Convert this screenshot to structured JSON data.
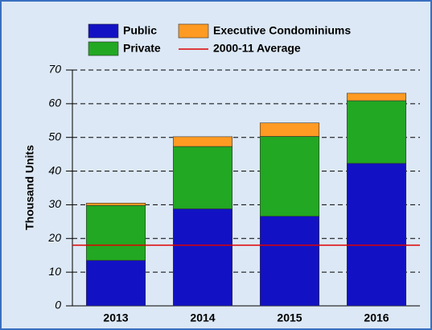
{
  "chart_data": {
    "type": "bar",
    "stacked": true,
    "categories": [
      "2013",
      "2014",
      "2015",
      "2016"
    ],
    "series": [
      {
        "name": "Public",
        "color": "#1212c4",
        "values": [
          13.5,
          28.8,
          26.6,
          42.3
        ]
      },
      {
        "name": "Private",
        "color": "#22a822",
        "values": [
          16.3,
          18.5,
          23.7,
          18.6
        ]
      },
      {
        "name": "Executive Condominiums",
        "color": "#ff9a22",
        "values": [
          0.7,
          2.9,
          4.0,
          2.2
        ]
      }
    ],
    "reference_lines": [
      {
        "name": "2000-11 Average",
        "value": 18,
        "color": "#e00000"
      }
    ],
    "y_label": "Thousand Units",
    "ylim": [
      0,
      70
    ],
    "yticks": [
      0,
      10,
      20,
      30,
      40,
      50,
      60,
      70
    ],
    "grid": true
  }
}
